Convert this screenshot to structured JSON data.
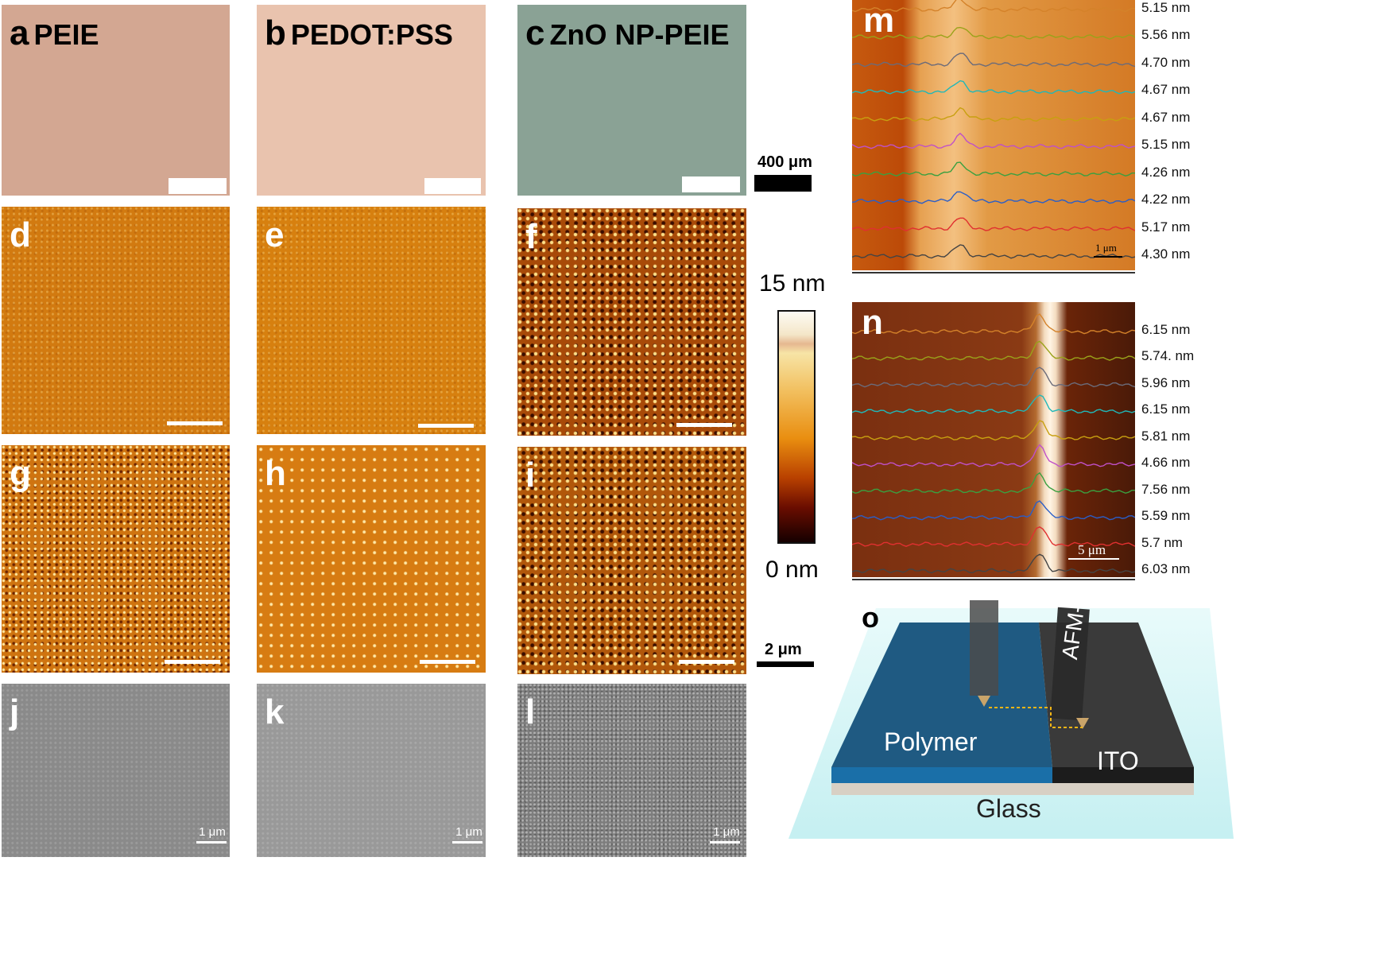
{
  "panels": {
    "a": {
      "letter": "a",
      "title": "PEIE"
    },
    "b": {
      "letter": "b",
      "title": "PEDOT:PSS"
    },
    "c": {
      "letter": "c",
      "title": "ZnO NP-PEIE"
    },
    "d": {
      "letter": "d"
    },
    "e": {
      "letter": "e"
    },
    "f": {
      "letter": "f"
    },
    "g": {
      "letter": "g"
    },
    "h": {
      "letter": "h"
    },
    "i": {
      "letter": "i"
    },
    "j": {
      "letter": "j"
    },
    "k": {
      "letter": "k"
    },
    "l": {
      "letter": "l"
    },
    "m": {
      "letter": "m"
    },
    "n": {
      "letter": "n"
    },
    "o": {
      "letter": "o"
    }
  },
  "scale_optical": "400 μm",
  "scale_afm": "2 μm",
  "scale_sem": "1 μm",
  "colorbar": {
    "max_label": "15 nm",
    "min_label": "0 nm"
  },
  "panel_m": {
    "scale": "1 μm",
    "thickness_labels": [
      "5.15 nm",
      "5.56 nm",
      "4.70 nm",
      "4.67 nm",
      "4.67 nm",
      "5.15 nm",
      "4.26 nm",
      "4.22 nm",
      "5.17 nm",
      "4.30 nm"
    ]
  },
  "panel_n": {
    "scale": "5 μm",
    "thickness_labels": [
      "6.15 nm",
      "5.74. nm",
      "5.96 nm",
      "6.15 nm",
      "5.81 nm",
      "4.66 nm",
      "7.56 nm",
      "5.59 nm",
      "5.7 nm",
      "6.03 nm"
    ]
  },
  "panel_o": {
    "polymer": "Polymer",
    "ito": "ITO",
    "glass": "Glass",
    "tip": "AFM-Tip"
  },
  "colors": {
    "optical_peie": "#d3a792",
    "optical_pedot": "#e9c3ae",
    "optical_zno": "#8aa295"
  }
}
